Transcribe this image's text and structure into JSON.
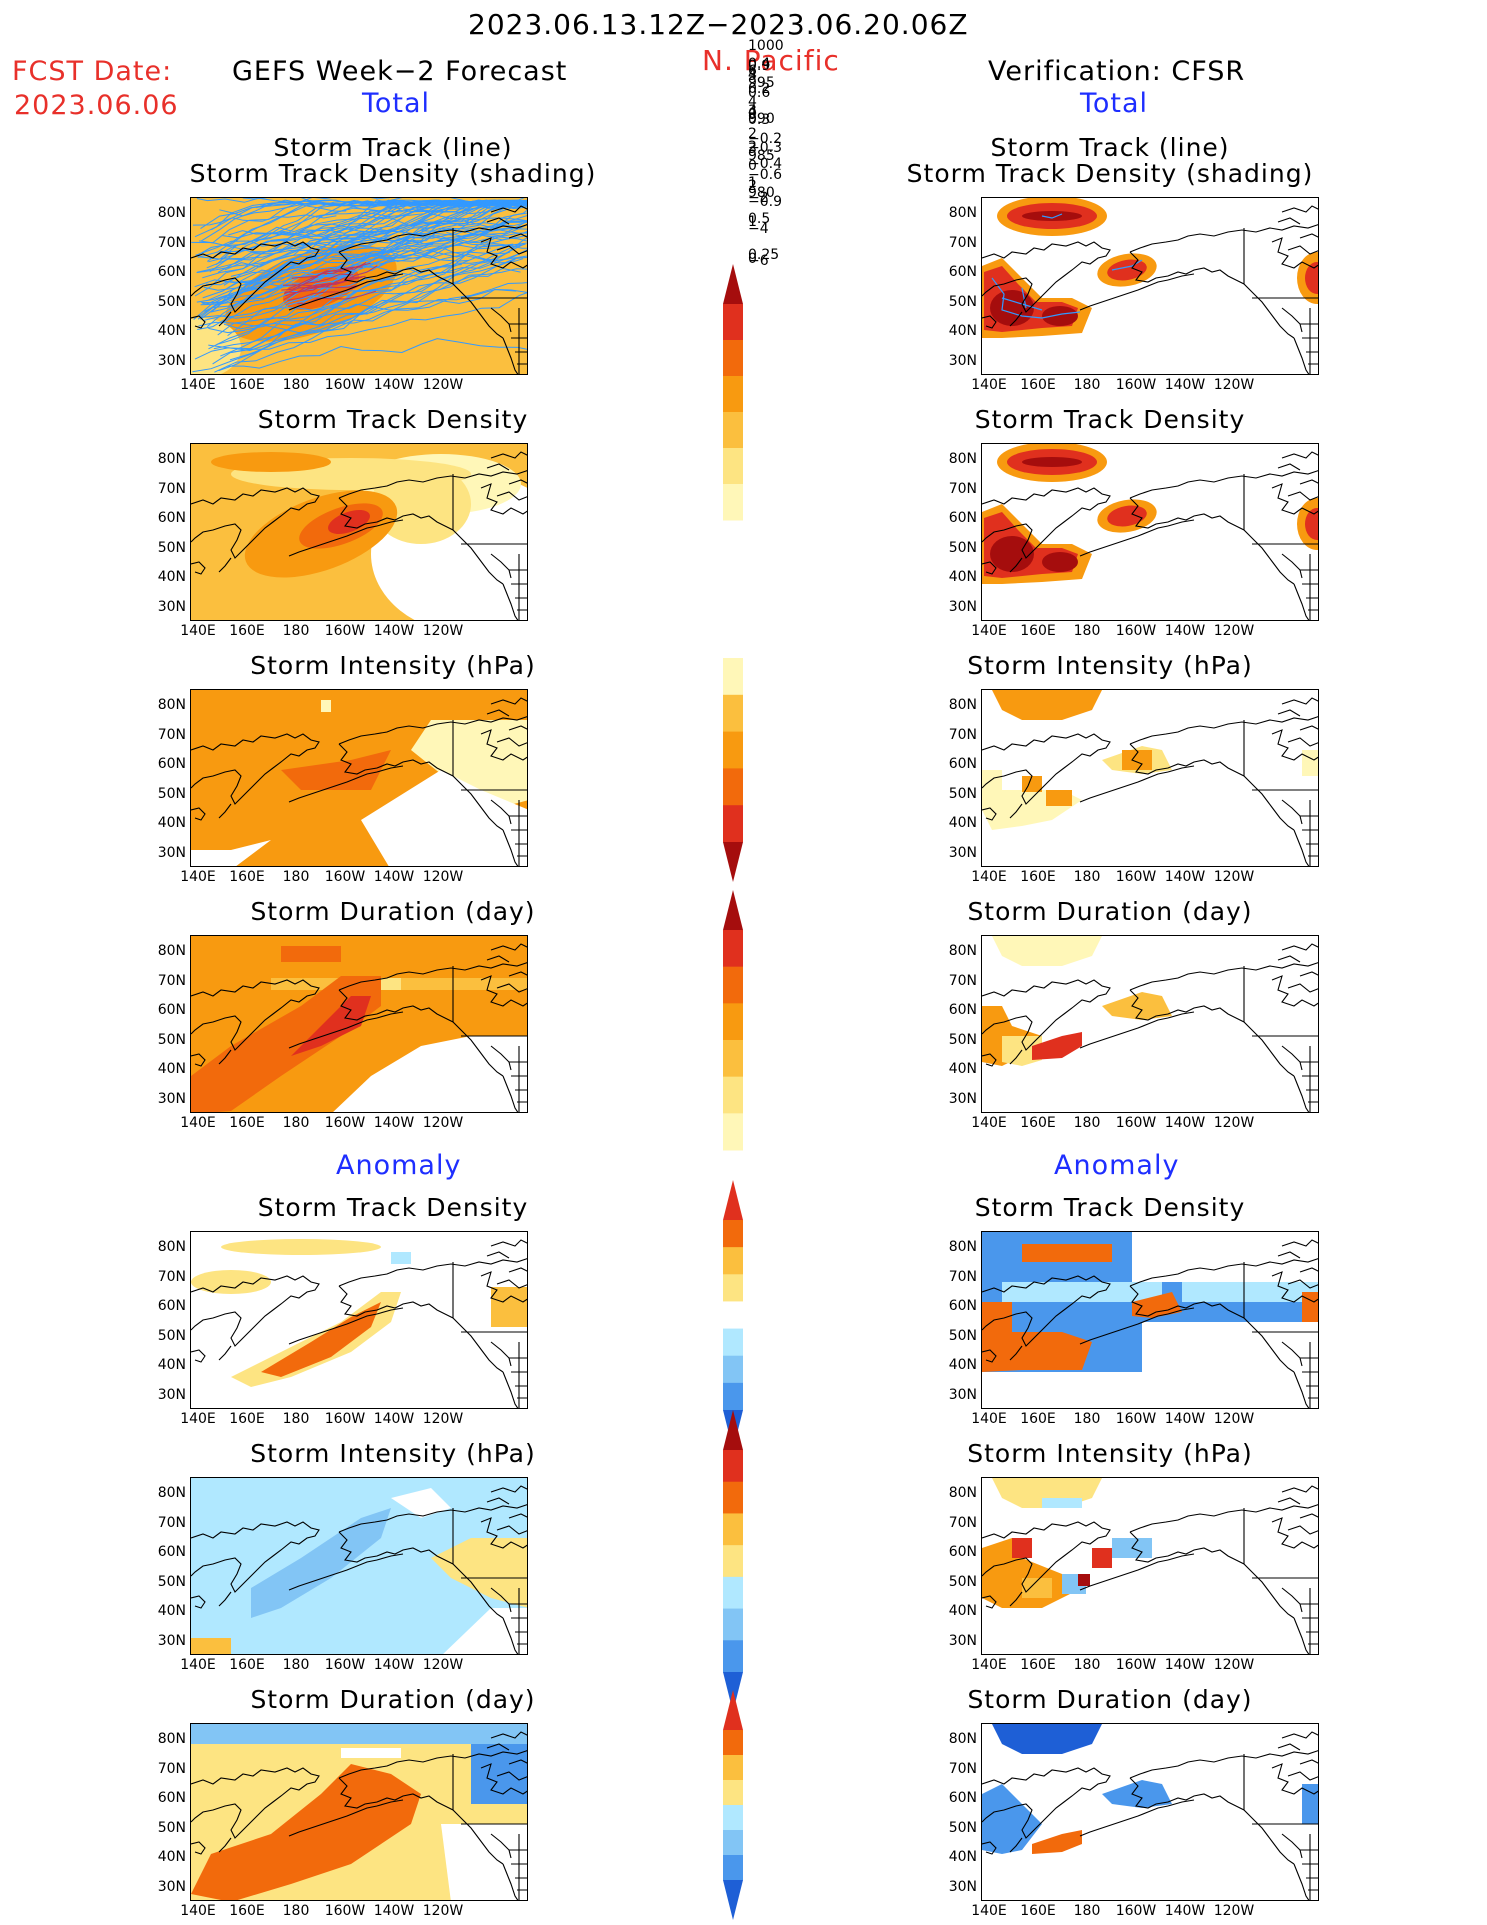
{
  "header": {
    "period": "2023.06.13.12Z−2023.06.20.06Z",
    "region": "N. Pacific",
    "fcst_label": "FCST Date:",
    "fcst_date": "2023.06.06",
    "left_title": "GEFS Week−2 Forecast",
    "right_title": "Verification: CFSR",
    "total_left": "Total",
    "total_right": "Total",
    "anomaly_left": "Anomaly",
    "anomaly_right": "Anomaly"
  },
  "panels": {
    "track_line": "Storm Track (line)",
    "track_shade": "Storm Track Density (shading)",
    "density": "Storm Track Density",
    "intensity": "Storm Intensity (hPa)",
    "duration": "Storm Duration (day)"
  },
  "axes": {
    "lats": [
      "80N",
      "70N",
      "60N",
      "50N",
      "40N",
      "30N"
    ],
    "lons": [
      "140E",
      "160E",
      "180",
      "160W",
      "140W",
      "120W"
    ]
  },
  "colorbars": {
    "density": [
      "4",
      "3",
      "2",
      "1",
      "0.5",
      "0.25"
    ],
    "intensity": [
      "1000",
      "995",
      "990",
      "985",
      "980"
    ],
    "duration": [
      "5",
      "4",
      "3",
      "2",
      "1",
      "0"
    ],
    "density_anom": [
      "0.9",
      "0.6",
      "0.3",
      "−0.3",
      "−0.6",
      "−0.9"
    ],
    "intensity_anom": [
      "6",
      "4",
      "2",
      "0",
      "−2",
      "−4",
      "−6"
    ],
    "duration_anom": [
      "0.4",
      "0.2",
      "0",
      "−0.2",
      "−0.4"
    ]
  },
  "colors": {
    "warm": [
      "#fff7b8",
      "#fde482",
      "#fbbf3e",
      "#f89a10",
      "#f26a0c",
      "#e0301e",
      "#a50d0d"
    ],
    "cool": [
      "#ffffff",
      "#b0e8ff",
      "#82c5f5",
      "#4a97ec",
      "#1e5fd6"
    ],
    "track": "#3399ff",
    "track_center": "#c0365c"
  }
}
